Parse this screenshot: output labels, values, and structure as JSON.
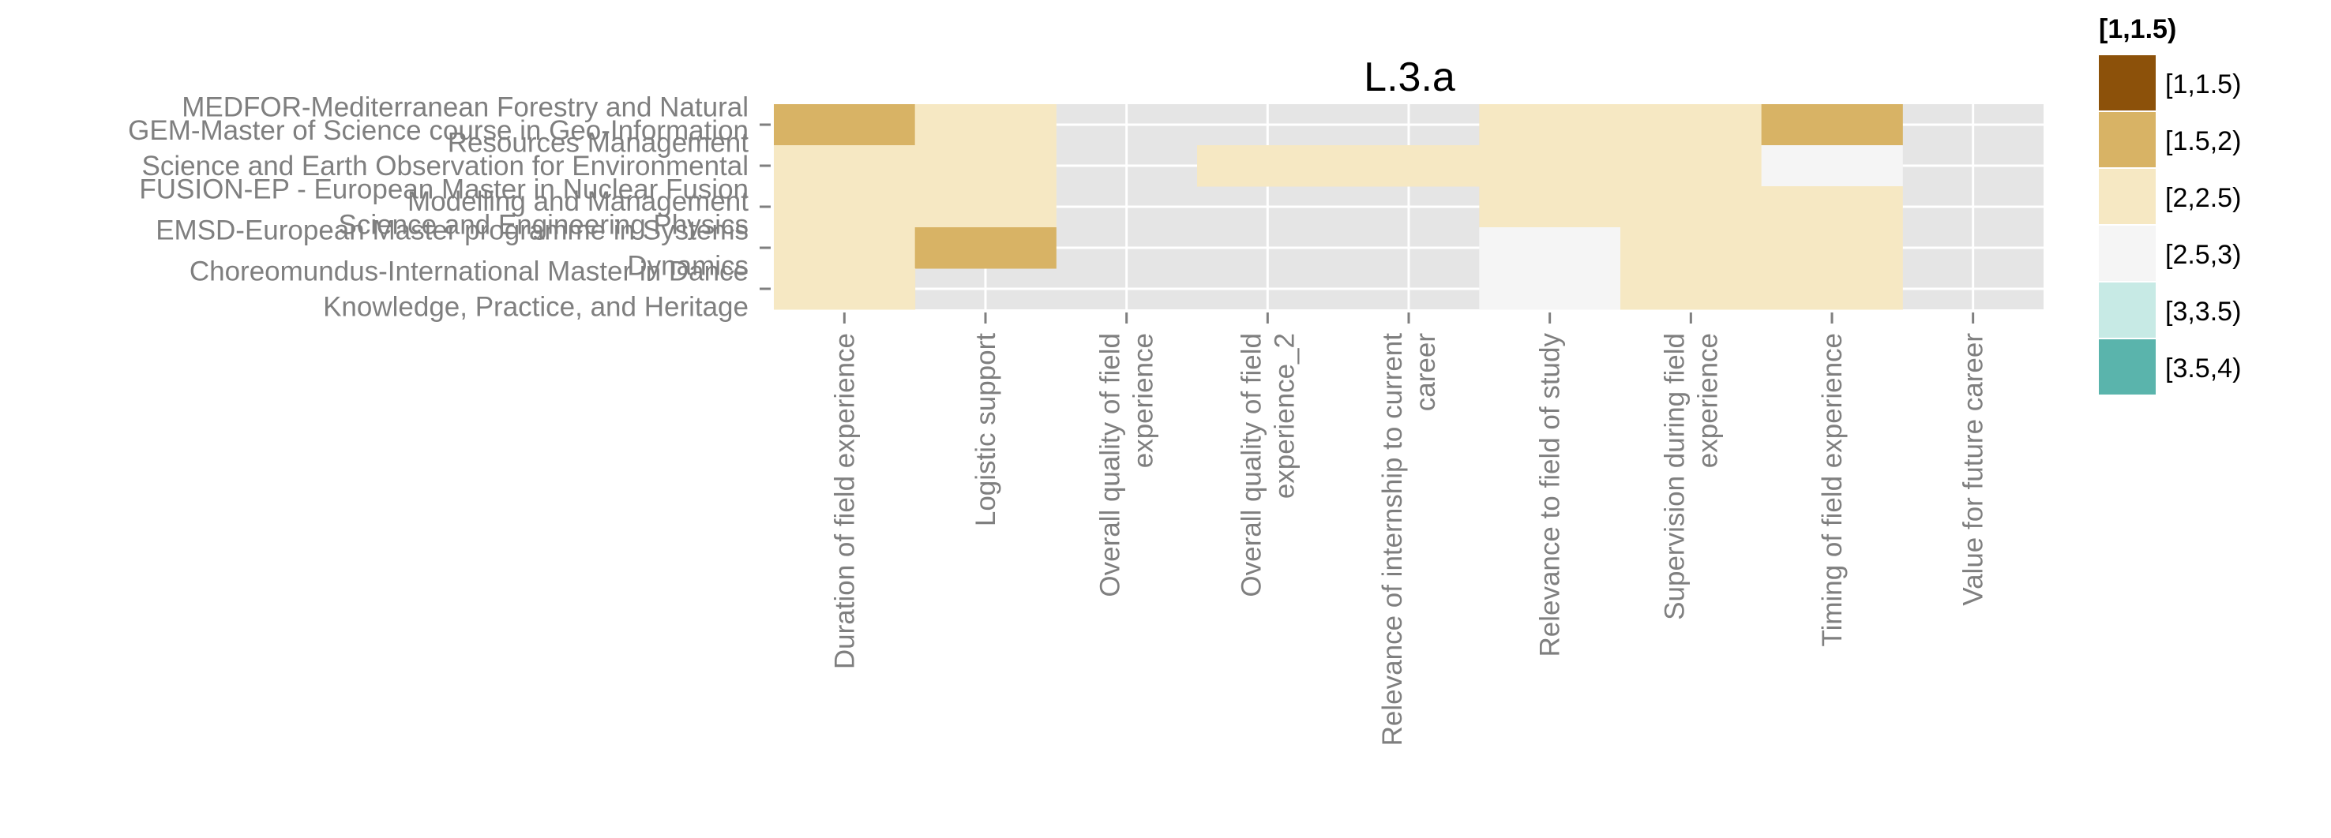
{
  "chart_data": {
    "type": "heatmap",
    "title": "L.3.a",
    "xlabel": "",
    "ylabel": "",
    "x_categories": [
      [
        "Duration of field experience"
      ],
      [
        "Logistic support"
      ],
      [
        "Overall quality of field",
        "experience"
      ],
      [
        "Overall quality of field",
        "experience_2"
      ],
      [
        "Relevance of internship to current",
        "career"
      ],
      [
        "Relevance to field of study"
      ],
      [
        "Supervision during field",
        "experience"
      ],
      [
        "Timing of field experience"
      ],
      [
        "Value for future career"
      ]
    ],
    "y_categories": [
      [
        "MEDFOR-Mediterranean Forestry and Natural",
        "Resources Management"
      ],
      [
        "GEM-Master of Science course in Geo-Information",
        "Science and Earth Observation for Environmental",
        "Modelling and Management"
      ],
      [
        "FUSION-EP - European Master in Nuclear Fusion",
        "Science and Engineering Physics"
      ],
      [
        "EMSD-European Master programme in Systems",
        "Dynamics"
      ],
      [
        "Choreomundus-International Master in Dance",
        "Knowledge, Practice, and Heritage"
      ]
    ],
    "cells": [
      {
        "x": 0,
        "y": 0,
        "bin": "[1.5,2)"
      },
      {
        "x": 1,
        "y": 0,
        "bin": "[2,2.5)"
      },
      {
        "x": 5,
        "y": 0,
        "bin": "[2,2.5)"
      },
      {
        "x": 6,
        "y": 0,
        "bin": "[2,2.5)"
      },
      {
        "x": 7,
        "y": 0,
        "bin": "[1.5,2)"
      },
      {
        "x": 0,
        "y": 1,
        "bin": "[2,2.5)"
      },
      {
        "x": 1,
        "y": 1,
        "bin": "[2,2.5)"
      },
      {
        "x": 3,
        "y": 1,
        "bin": "[2,2.5)"
      },
      {
        "x": 4,
        "y": 1,
        "bin": "[2,2.5)"
      },
      {
        "x": 5,
        "y": 1,
        "bin": "[2,2.5)"
      },
      {
        "x": 6,
        "y": 1,
        "bin": "[2,2.5)"
      },
      {
        "x": 7,
        "y": 1,
        "bin": "[2.5,3)"
      },
      {
        "x": 0,
        "y": 2,
        "bin": "[2,2.5)"
      },
      {
        "x": 1,
        "y": 2,
        "bin": "[2,2.5)"
      },
      {
        "x": 5,
        "y": 2,
        "bin": "[2,2.5)"
      },
      {
        "x": 6,
        "y": 2,
        "bin": "[2,2.5)"
      },
      {
        "x": 7,
        "y": 2,
        "bin": "[2,2.5)"
      },
      {
        "x": 0,
        "y": 3,
        "bin": "[2,2.5)"
      },
      {
        "x": 1,
        "y": 3,
        "bin": "[1.5,2)"
      },
      {
        "x": 5,
        "y": 3,
        "bin": "[2.5,3)"
      },
      {
        "x": 6,
        "y": 3,
        "bin": "[2,2.5)"
      },
      {
        "x": 7,
        "y": 3,
        "bin": "[2,2.5)"
      },
      {
        "x": 0,
        "y": 4,
        "bin": "[2,2.5)"
      },
      {
        "x": 5,
        "y": 4,
        "bin": "[2.5,3)"
      },
      {
        "x": 6,
        "y": 4,
        "bin": "[2,2.5)"
      },
      {
        "x": 7,
        "y": 4,
        "bin": "[2,2.5)"
      }
    ],
    "legend": {
      "title": "[1,1.5)",
      "placement": "right",
      "items": [
        {
          "label": "[1,1.5)",
          "color": "#8c510a"
        },
        {
          "label": "[1.5,2)",
          "color": "#d8b365"
        },
        {
          "label": "[2,2.5)",
          "color": "#f6e8c3"
        },
        {
          "label": "[2.5,3)",
          "color": "#f5f5f5"
        },
        {
          "label": "[3,3.5)",
          "color": "#c7eae5"
        },
        {
          "label": "[3.5,4)",
          "color": "#5ab4ac"
        }
      ]
    },
    "panel_background": "#e5e5e5",
    "grid": true
  }
}
